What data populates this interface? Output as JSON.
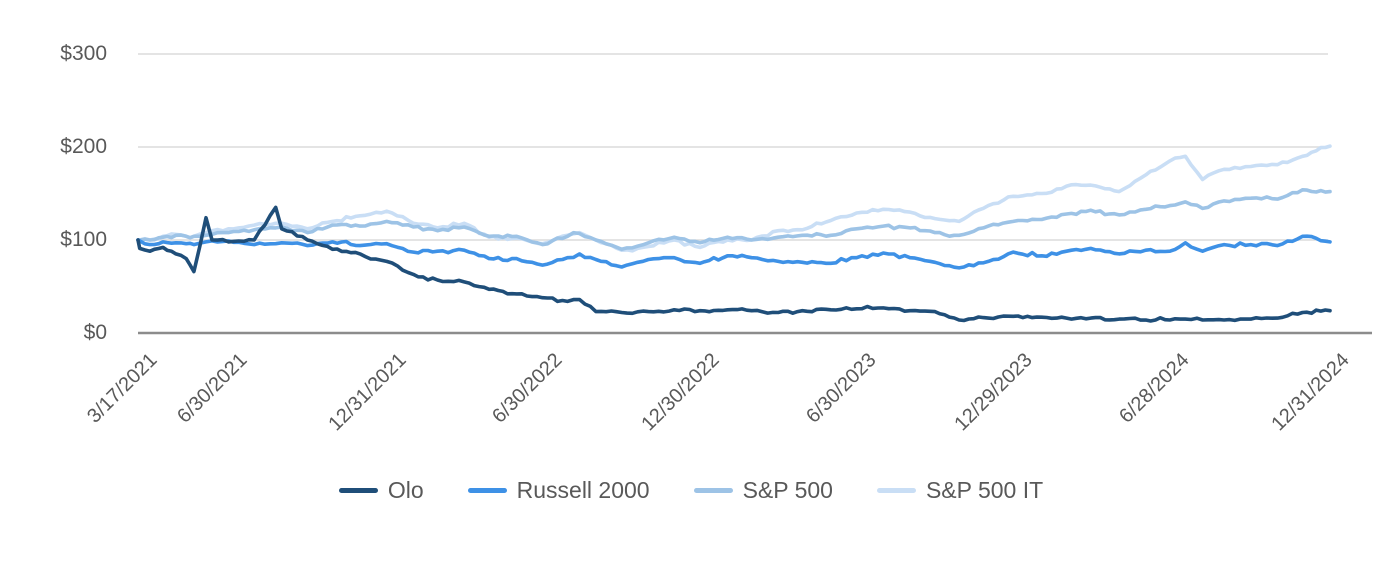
{
  "chart_data": {
    "type": "line",
    "title": "",
    "ylabel": "",
    "xlabel": "",
    "ylim": [
      0,
      300
    ],
    "grid": "horizontal",
    "legend_position": "bottom",
    "label_color": "#595959",
    "grid_color": "#DCDCDC",
    "axis_color": "#8C8C8C",
    "y_ticks": [
      {
        "label": "$300",
        "value": 300
      },
      {
        "label": "$200",
        "value": 200
      },
      {
        "label": "$100",
        "value": 100
      },
      {
        "label": "$0",
        "value": 0
      }
    ],
    "x_tick_labels": [
      "3/17/2021",
      "6/30/2021",
      "12/31/2021",
      "6/30/2022",
      "12/30/2022",
      "6/30/2023",
      "12/29/2023",
      "6/28/2024",
      "12/31/2024"
    ],
    "x": [
      "3/17/2021",
      "3/19/2021",
      "3/31/2021",
      "4/15/2021",
      "4/30/2021",
      "5/12/2021",
      "5/21/2021",
      "6/4/2021",
      "6/11/2021",
      "6/30/2021",
      "7/30/2021",
      "8/24/2021",
      "8/31/2021",
      "9/30/2021",
      "10/29/2021",
      "11/30/2021",
      "12/31/2021",
      "1/31/2022",
      "2/28/2022",
      "3/31/2022",
      "4/29/2022",
      "5/31/2022",
      "6/30/2022",
      "7/29/2022",
      "8/12/2022",
      "8/31/2022",
      "9/30/2022",
      "10/31/2022",
      "11/30/2022",
      "12/30/2022",
      "1/31/2023",
      "2/28/2023",
      "3/31/2023",
      "4/28/2023",
      "5/31/2023",
      "6/30/2023",
      "7/31/2023",
      "8/31/2023",
      "9/29/2023",
      "10/27/2023",
      "11/30/2023",
      "12/29/2023",
      "1/31/2024",
      "2/29/2024",
      "3/28/2024",
      "4/30/2024",
      "5/31/2024",
      "6/28/2024",
      "7/16/2024",
      "8/5/2024",
      "8/30/2024",
      "9/30/2024",
      "10/31/2024",
      "11/29/2024",
      "12/31/2024"
    ],
    "series": [
      {
        "name": "Olo",
        "color": "#1F4E79",
        "values": [
          100,
          91,
          88,
          92,
          85,
          80,
          66,
          124,
          100,
          98,
          100,
          135,
          112,
          100,
          90,
          85,
          77,
          63,
          57,
          55,
          47,
          42,
          38,
          34,
          36,
          23,
          22,
          23,
          25,
          24,
          25,
          24,
          22,
          24,
          25,
          26,
          27,
          24,
          23,
          14,
          16,
          18,
          17,
          16,
          16,
          15,
          14,
          14,
          15,
          14,
          14,
          15,
          16,
          22,
          24
        ]
      },
      {
        "name": "Russell 2000",
        "color": "#3E91E6",
        "values": [
          100,
          99,
          95,
          98,
          97,
          96,
          95,
          98,
          99,
          99,
          95,
          96,
          97,
          94,
          98,
          94,
          96,
          87,
          88,
          89,
          80,
          80,
          73,
          81,
          85,
          79,
          71,
          79,
          81,
          75,
          83,
          81,
          77,
          76,
          75,
          81,
          86,
          81,
          76,
          70,
          77,
          87,
          83,
          88,
          91,
          85,
          89,
          88,
          97,
          88,
          95,
          95,
          94,
          104,
          98
        ]
      },
      {
        "name": "S&P 500",
        "color": "#9DC3E6",
        "values": [
          100,
          100,
          100,
          103,
          105,
          104,
          104,
          105,
          106,
          108,
          111,
          113,
          114,
          108,
          116,
          115,
          120,
          114,
          110,
          114,
          104,
          104,
          95,
          104,
          107,
          100,
          90,
          97,
          103,
          97,
          103,
          100,
          103,
          105,
          105,
          112,
          115,
          113,
          108,
          105,
          115,
          120,
          122,
          128,
          132,
          127,
          133,
          137,
          141,
          134,
          142,
          145,
          144,
          154,
          152
        ]
      },
      {
        "name": "S&P 500 IT",
        "color": "#C9DEF5",
        "values": [
          100,
          100,
          100,
          104,
          106,
          104,
          104,
          108,
          110,
          112,
          116,
          118,
          118,
          112,
          120,
          126,
          131,
          118,
          113,
          118,
          103,
          102,
          96,
          105,
          108,
          100,
          89,
          93,
          100,
          92,
          100,
          100,
          110,
          111,
          121,
          129,
          133,
          130,
          123,
          120,
          137,
          147,
          150,
          158,
          159,
          152,
          170,
          185,
          190,
          165,
          176,
          179,
          181,
          190,
          201
        ]
      }
    ]
  }
}
